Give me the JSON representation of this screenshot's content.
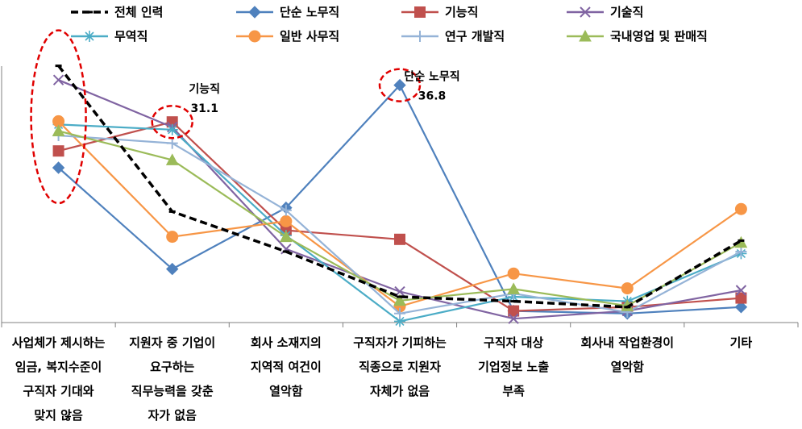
{
  "chart_data": {
    "type": "line",
    "categories": [
      [
        "사업체가 제시하는",
        "임금, 복지수준이",
        "구직자 기대와",
        "맞지 않음"
      ],
      [
        "지원자 중 기업이",
        "요구하는",
        "직무능력을 갖춘",
        "자가 없음"
      ],
      [
        "회사 소재지의",
        "지역적 여건이",
        "열악함"
      ],
      [
        "구직자가 기피하는",
        "직종으로 지원자",
        "자체가 없음"
      ],
      [
        "구직자 대상",
        "기업정보 노출",
        "부족"
      ],
      [
        "회사내 작업환경이",
        "열악함"
      ],
      [
        "기타"
      ]
    ],
    "ylim": [
      0,
      40
    ],
    "grid": false,
    "legend_position": "top",
    "series": [
      {
        "name": "전체 인력",
        "color": "#000000",
        "dash": true,
        "marker": "dash",
        "values": [
          39.8,
          17.2,
          11.0,
          4.0,
          3.3,
          2.4,
          12.7
        ]
      },
      {
        "name": "단순 노무직",
        "color": "#4F81BD",
        "marker": "diamond",
        "values": [
          24.0,
          8.3,
          17.8,
          36.8,
          1.8,
          1.4,
          2.4
        ]
      },
      {
        "name": "기능직",
        "color": "#C0504D",
        "marker": "square",
        "values": [
          26.6,
          31.1,
          14.3,
          12.9,
          1.8,
          2.4,
          3.8
        ]
      },
      {
        "name": "기술직",
        "color": "#8064A2",
        "marker": "x",
        "values": [
          37.6,
          30.3,
          11.4,
          4.8,
          0.6,
          1.8,
          5.0
        ]
      },
      {
        "name": "무역직",
        "color": "#4BACC6",
        "marker": "star",
        "values": [
          30.7,
          29.9,
          13.5,
          0.2,
          4.0,
          3.3,
          10.7
        ]
      },
      {
        "name": "일반 사무직",
        "color": "#F79646",
        "marker": "circle",
        "values": [
          31.2,
          13.3,
          15.7,
          2.5,
          7.6,
          5.3,
          17.6
        ]
      },
      {
        "name": "연구 개발직",
        "color": "#95B3D7",
        "marker": "plus",
        "values": [
          29.0,
          27.8,
          17.4,
          1.4,
          4.5,
          1.6,
          11.0
        ]
      },
      {
        "name": "국내영업 및 판매직",
        "color": "#9BBB59",
        "marker": "triangle",
        "values": [
          29.7,
          25.2,
          13.3,
          3.4,
          5.2,
          2.6,
          12.4
        ]
      }
    ],
    "annotations": [
      {
        "label": "기능직",
        "value": "31.1",
        "series_index": 2,
        "category_index": 1
      },
      {
        "label": "단순 노무직",
        "value": "36.8",
        "series_index": 1,
        "category_index": 3
      }
    ],
    "highlight_ellipses": [
      {
        "category_index": 0,
        "covers": "all"
      },
      {
        "category_index": 1,
        "series_index": 2
      },
      {
        "category_index": 3,
        "series_index": 1
      }
    ]
  }
}
